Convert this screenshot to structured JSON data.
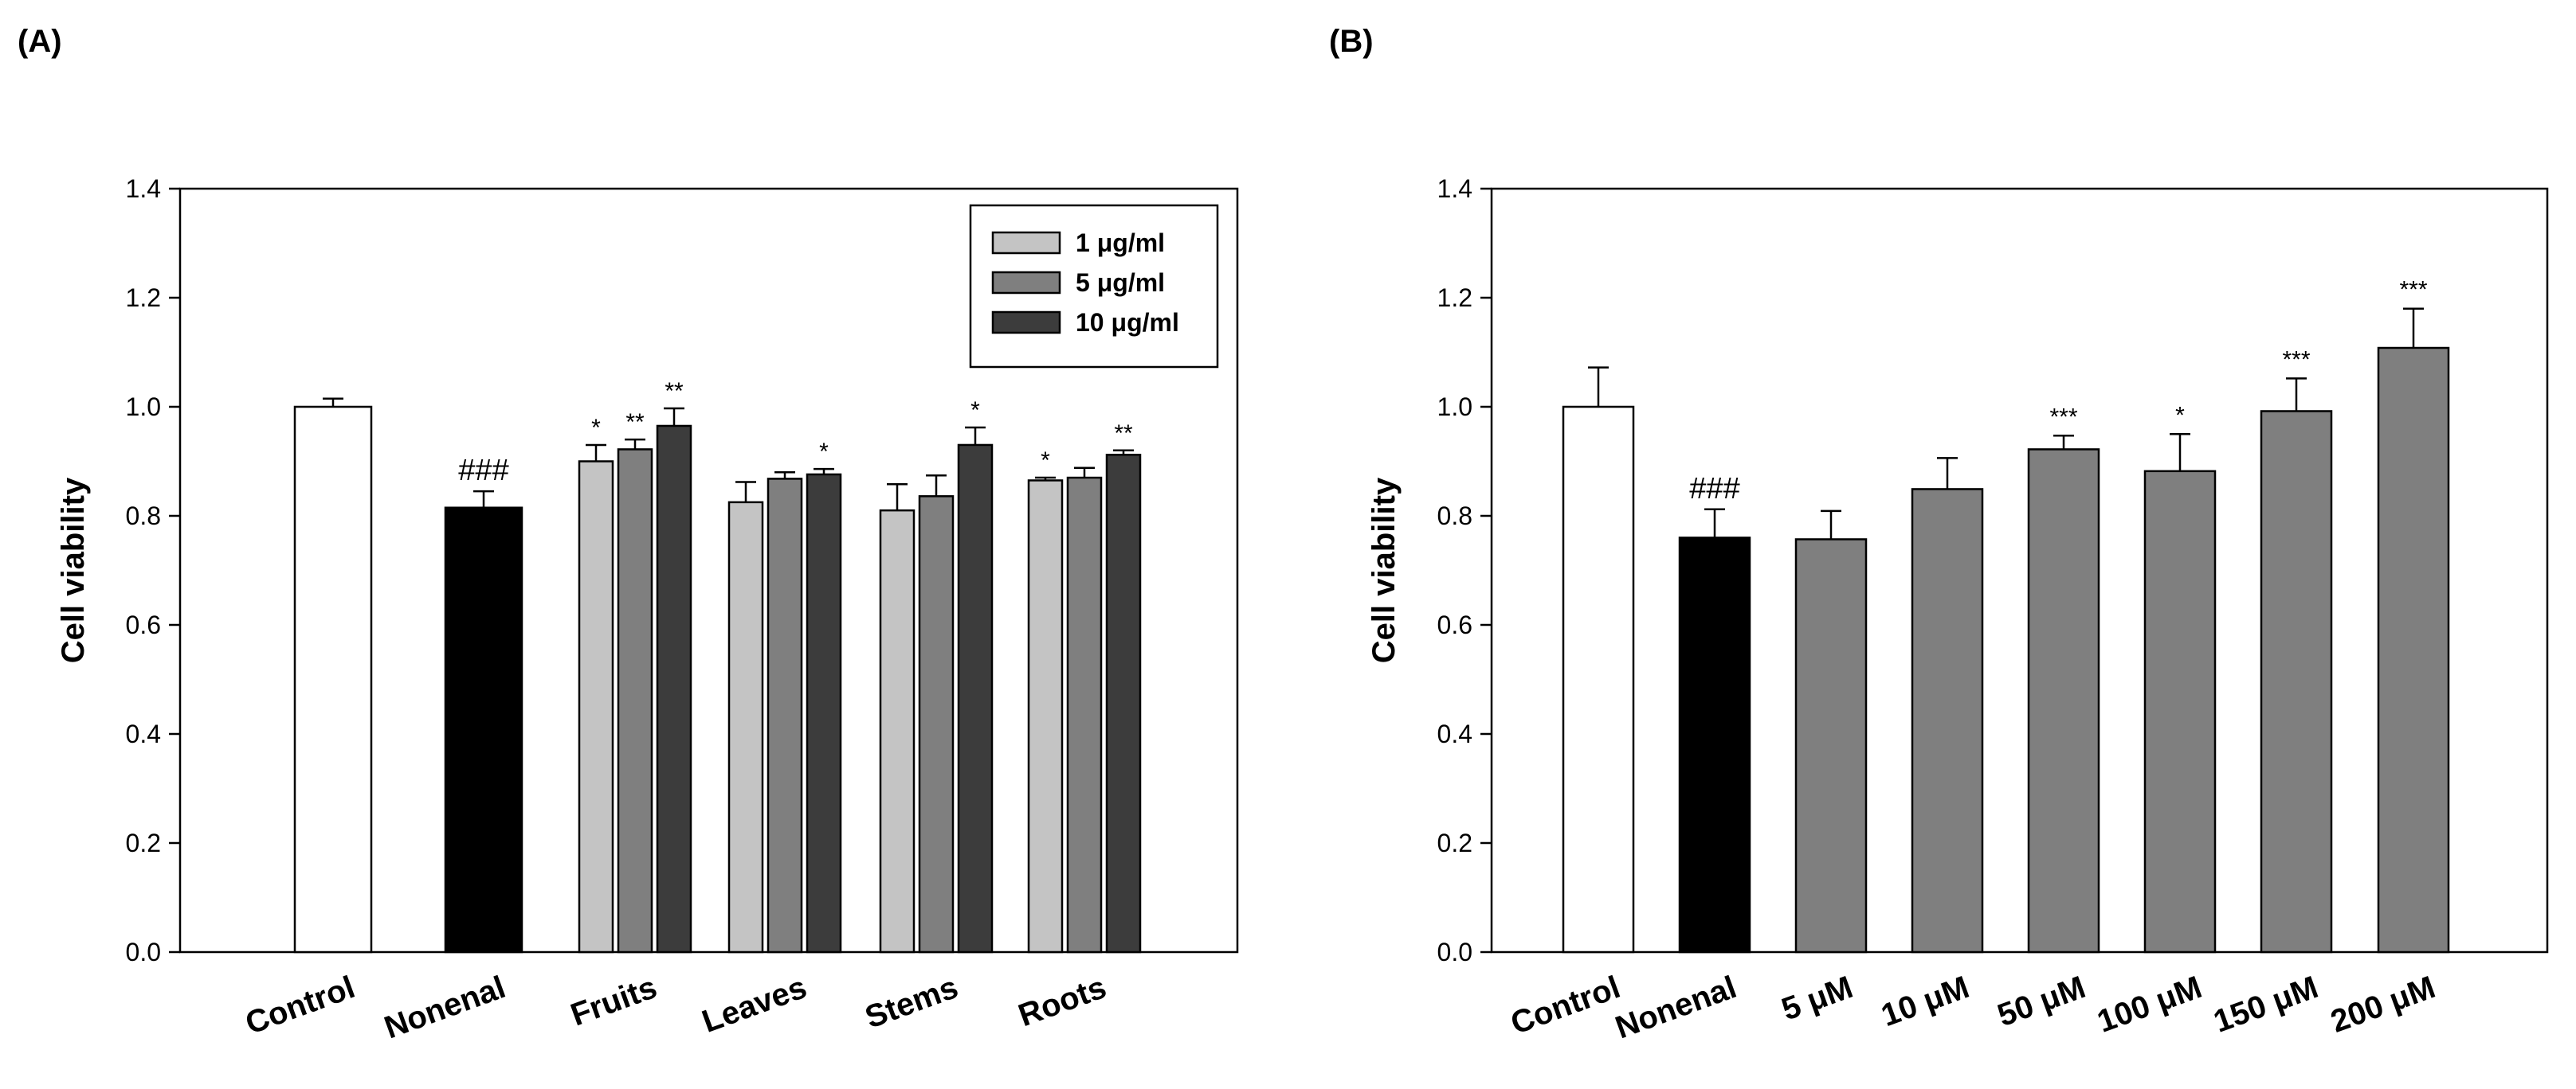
{
  "panels": [
    {
      "label": "(A)"
    },
    {
      "label": "(B)"
    }
  ],
  "colors": {
    "control": "#ffffff",
    "nonenal": "#000000",
    "dose1": "#c4c4c4",
    "dose5": "#7f7f7f",
    "dose10": "#3c3c3c",
    "treatment": "#7f7f7f",
    "stroke": "#000000"
  },
  "chart_data": [
    {
      "type": "bar",
      "panel": "(A)",
      "ylabel": "Cell viability",
      "xlabel": "",
      "ylim": [
        0,
        1.4
      ],
      "yticks": [
        "0.0",
        "0.2",
        "0.4",
        "0.6",
        "0.8",
        "1.0",
        "1.2",
        "1.4"
      ],
      "legend": {
        "placement": "top-right",
        "entries": [
          "1 μg/ml",
          "5 μg/ml",
          "10 μg/ml"
        ]
      },
      "categories": [
        "Control",
        "Nonenal",
        "Fruits",
        "Leaves",
        "Stems",
        "Roots"
      ],
      "groups": [
        {
          "category": "Control",
          "bars": [
            {
              "value": 1.0,
              "error": 0.015,
              "color_key": "control",
              "sig": ""
            }
          ],
          "annotation": ""
        },
        {
          "category": "Nonenal",
          "bars": [
            {
              "value": 0.815,
              "error": 0.03,
              "color_key": "nonenal",
              "sig": ""
            }
          ],
          "annotation": "###"
        },
        {
          "category": "Fruits",
          "bars": [
            {
              "value": 0.9,
              "error": 0.03,
              "color_key": "dose1",
              "sig": "*"
            },
            {
              "value": 0.922,
              "error": 0.018,
              "color_key": "dose5",
              "sig": "**"
            },
            {
              "value": 0.965,
              "error": 0.032,
              "color_key": "dose10",
              "sig": "**"
            }
          ],
          "annotation": ""
        },
        {
          "category": "Leaves",
          "bars": [
            {
              "value": 0.825,
              "error": 0.037,
              "color_key": "dose1",
              "sig": ""
            },
            {
              "value": 0.868,
              "error": 0.012,
              "color_key": "dose5",
              "sig": ""
            },
            {
              "value": 0.876,
              "error": 0.01,
              "color_key": "dose10",
              "sig": "*"
            }
          ],
          "annotation": ""
        },
        {
          "category": "Stems",
          "bars": [
            {
              "value": 0.81,
              "error": 0.048,
              "color_key": "dose1",
              "sig": ""
            },
            {
              "value": 0.836,
              "error": 0.038,
              "color_key": "dose5",
              "sig": ""
            },
            {
              "value": 0.93,
              "error": 0.032,
              "color_key": "dose10",
              "sig": "*"
            }
          ],
          "annotation": ""
        },
        {
          "category": "Roots",
          "bars": [
            {
              "value": 0.865,
              "error": 0.005,
              "color_key": "dose1",
              "sig": "*"
            },
            {
              "value": 0.87,
              "error": 0.018,
              "color_key": "dose5",
              "sig": ""
            },
            {
              "value": 0.912,
              "error": 0.008,
              "color_key": "dose10",
              "sig": "**"
            }
          ],
          "annotation": ""
        }
      ]
    },
    {
      "type": "bar",
      "panel": "(B)",
      "ylabel": "Cell viability",
      "xlabel": "",
      "ylim": [
        0,
        1.4
      ],
      "yticks": [
        "0.0",
        "0.2",
        "0.4",
        "0.6",
        "0.8",
        "1.0",
        "1.2",
        "1.4"
      ],
      "categories": [
        "Control",
        "Nonenal",
        "5 μM",
        "10 μM",
        "50 μM",
        "100 μM",
        "150 μM",
        "200 μM"
      ],
      "bars": [
        {
          "category": "Control",
          "value": 1.0,
          "error": 0.072,
          "color_key": "control",
          "sig": ""
        },
        {
          "category": "Nonenal",
          "value": 0.76,
          "error": 0.052,
          "color_key": "nonenal",
          "sig": "###"
        },
        {
          "category": "5 μM",
          "value": 0.757,
          "error": 0.052,
          "color_key": "treatment",
          "sig": ""
        },
        {
          "category": "10 μM",
          "value": 0.849,
          "error": 0.057,
          "color_key": "treatment",
          "sig": ""
        },
        {
          "category": "50 μM",
          "value": 0.922,
          "error": 0.025,
          "color_key": "treatment",
          "sig": "***"
        },
        {
          "category": "100 μM",
          "value": 0.882,
          "error": 0.068,
          "color_key": "treatment",
          "sig": "*"
        },
        {
          "category": "150 μM",
          "value": 0.992,
          "error": 0.06,
          "color_key": "treatment",
          "sig": "***"
        },
        {
          "category": "200 μM",
          "value": 1.108,
          "error": 0.072,
          "color_key": "treatment",
          "sig": "***"
        }
      ]
    }
  ]
}
